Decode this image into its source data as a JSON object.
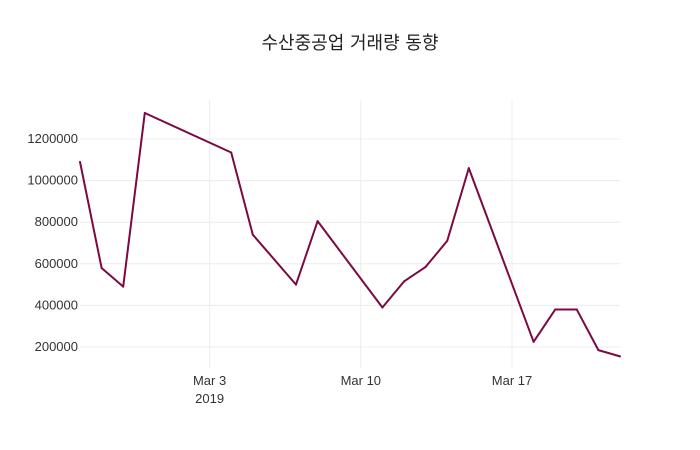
{
  "chart_data": {
    "type": "line",
    "title": "수산중공업 거래량 동향",
    "xlabel": "",
    "ylabel": "",
    "x_range": [
      "2019-02-25",
      "2019-03-22"
    ],
    "ylim": [
      100000,
      1400000
    ],
    "grid": true,
    "legend": "none",
    "x_ticks": [
      {
        "date": "2019-03-03",
        "label": "Mar 3",
        "sublabel": "2019"
      },
      {
        "date": "2019-03-10",
        "label": "Mar 10",
        "sublabel": ""
      },
      {
        "date": "2019-03-17",
        "label": "Mar 17",
        "sublabel": ""
      }
    ],
    "y_ticks": [
      200000,
      400000,
      600000,
      800000,
      1000000,
      1200000
    ],
    "series": [
      {
        "name": "",
        "color": "#7b0a44",
        "points": [
          {
            "x": "2019-02-25",
            "y": 1090000
          },
          {
            "x": "2019-02-26",
            "y": 580000
          },
          {
            "x": "2019-02-27",
            "y": 490000
          },
          {
            "x": "2019-02-28",
            "y": 1325000
          },
          {
            "x": "2019-03-04",
            "y": 1135000
          },
          {
            "x": "2019-03-05",
            "y": 740000
          },
          {
            "x": "2019-03-07",
            "y": 500000
          },
          {
            "x": "2019-03-08",
            "y": 805000
          },
          {
            "x": "2019-03-11",
            "y": 390000
          },
          {
            "x": "2019-03-12",
            "y": 515000
          },
          {
            "x": "2019-03-13",
            "y": 585000
          },
          {
            "x": "2019-03-14",
            "y": 710000
          },
          {
            "x": "2019-03-15",
            "y": 1060000
          },
          {
            "x": "2019-03-18",
            "y": 225000
          },
          {
            "x": "2019-03-19",
            "y": 380000
          },
          {
            "x": "2019-03-20",
            "y": 380000
          },
          {
            "x": "2019-03-21",
            "y": 185000
          },
          {
            "x": "2019-03-22",
            "y": 155000
          }
        ]
      }
    ]
  }
}
